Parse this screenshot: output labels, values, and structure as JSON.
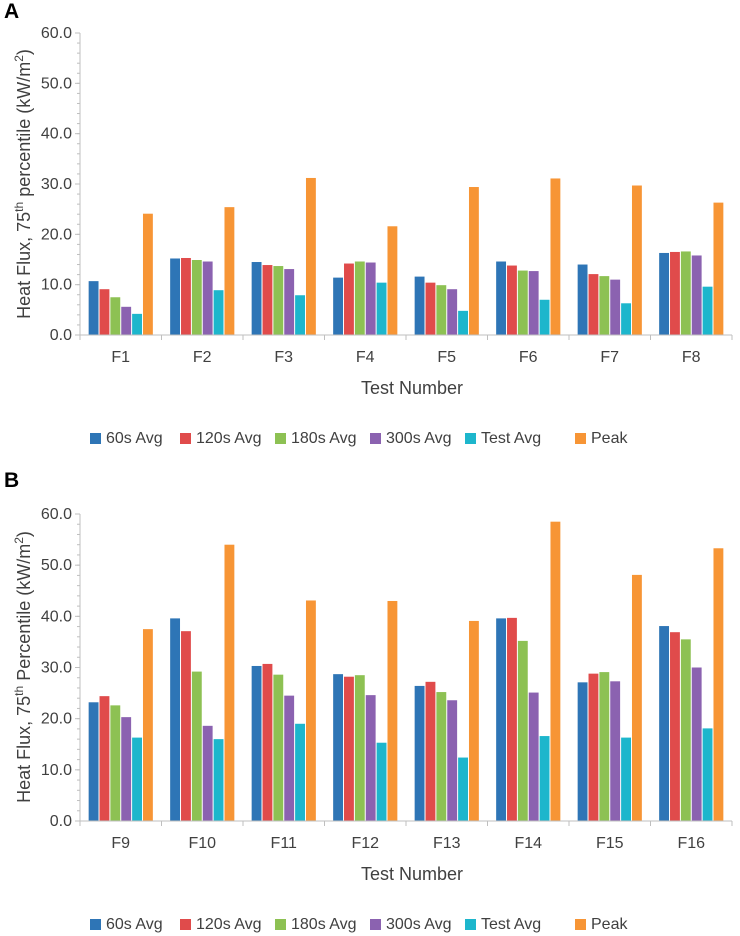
{
  "chart_data": [
    {
      "type": "bar",
      "panel": "A",
      "categories": [
        "F1",
        "F2",
        "F3",
        "F4",
        "F5",
        "F6",
        "F7",
        "F8"
      ],
      "series": [
        {
          "name": "60s Avg",
          "color": "#2E75B6",
          "values": [
            10.7,
            15.2,
            14.5,
            11.4,
            11.6,
            14.6,
            14.0,
            16.3
          ]
        },
        {
          "name": "120s Avg",
          "color": "#E04B4B",
          "values": [
            9.1,
            15.3,
            13.9,
            14.2,
            10.4,
            13.8,
            12.1,
            16.5
          ]
        },
        {
          "name": "180s Avg",
          "color": "#8DC153",
          "values": [
            7.5,
            14.9,
            13.7,
            14.6,
            9.9,
            12.8,
            11.7,
            16.6
          ]
        },
        {
          "name": "300s Avg",
          "color": "#8B62B0",
          "values": [
            5.6,
            14.6,
            13.1,
            14.4,
            9.1,
            12.7,
            11.0,
            15.8
          ]
        },
        {
          "name": "Test Avg",
          "color": "#1DB6CC",
          "values": [
            4.2,
            8.9,
            7.9,
            10.4,
            4.8,
            7.0,
            6.3,
            9.6
          ]
        },
        {
          "name": "Peak",
          "color": "#F79535",
          "values": [
            24.1,
            25.4,
            31.2,
            21.6,
            29.4,
            31.1,
            29.7,
            26.3
          ]
        }
      ],
      "ylim": [
        0,
        60
      ],
      "yticks": [
        "0.0",
        "10.0",
        "20.0",
        "30.0",
        "40.0",
        "50.0",
        "60.0"
      ],
      "ylabel_main": "Heat Flux, 75",
      "ylabel_sup": "th",
      "ylabel_rest": " percentile (kW/m",
      "ylabel_unit_sup": "2",
      "ylabel_end": ")",
      "xlabel": "Test Number",
      "legend_position": "bottom"
    },
    {
      "type": "bar",
      "panel": "B",
      "categories": [
        "F9",
        "F10",
        "F11",
        "F12",
        "F13",
        "F14",
        "F15",
        "F16"
      ],
      "series": [
        {
          "name": "60s Avg",
          "color": "#2E75B6",
          "values": [
            23.2,
            39.6,
            30.3,
            28.7,
            26.4,
            39.6,
            27.1,
            38.1
          ]
        },
        {
          "name": "120s Avg",
          "color": "#E04B4B",
          "values": [
            24.4,
            37.1,
            30.7,
            28.2,
            27.2,
            39.7,
            28.8,
            36.9
          ]
        },
        {
          "name": "180s Avg",
          "color": "#8DC153",
          "values": [
            22.6,
            29.2,
            28.6,
            28.5,
            25.2,
            35.2,
            29.1,
            35.5
          ]
        },
        {
          "name": "300s Avg",
          "color": "#8B62B0",
          "values": [
            20.3,
            18.6,
            24.5,
            24.6,
            23.6,
            25.1,
            27.3,
            30.0
          ]
        },
        {
          "name": "Test Avg",
          "color": "#1DB6CC",
          "values": [
            16.3,
            16.0,
            19.0,
            15.3,
            12.4,
            16.6,
            16.3,
            18.1
          ]
        },
        {
          "name": "Peak",
          "color": "#F79535",
          "values": [
            37.5,
            54.0,
            43.1,
            43.0,
            39.1,
            58.5,
            48.1,
            53.3
          ]
        }
      ],
      "ylim": [
        0,
        60
      ],
      "yticks": [
        "0.0",
        "10.0",
        "20.0",
        "30.0",
        "40.0",
        "50.0",
        "60.0"
      ],
      "ylabel_main": "Heat Flux, 75",
      "ylabel_sup": "th",
      "ylabel_rest": " Percentile (kW/m",
      "ylabel_unit_sup": "2",
      "ylabel_end": ")",
      "xlabel": "Test Number",
      "legend_position": "bottom"
    }
  ]
}
